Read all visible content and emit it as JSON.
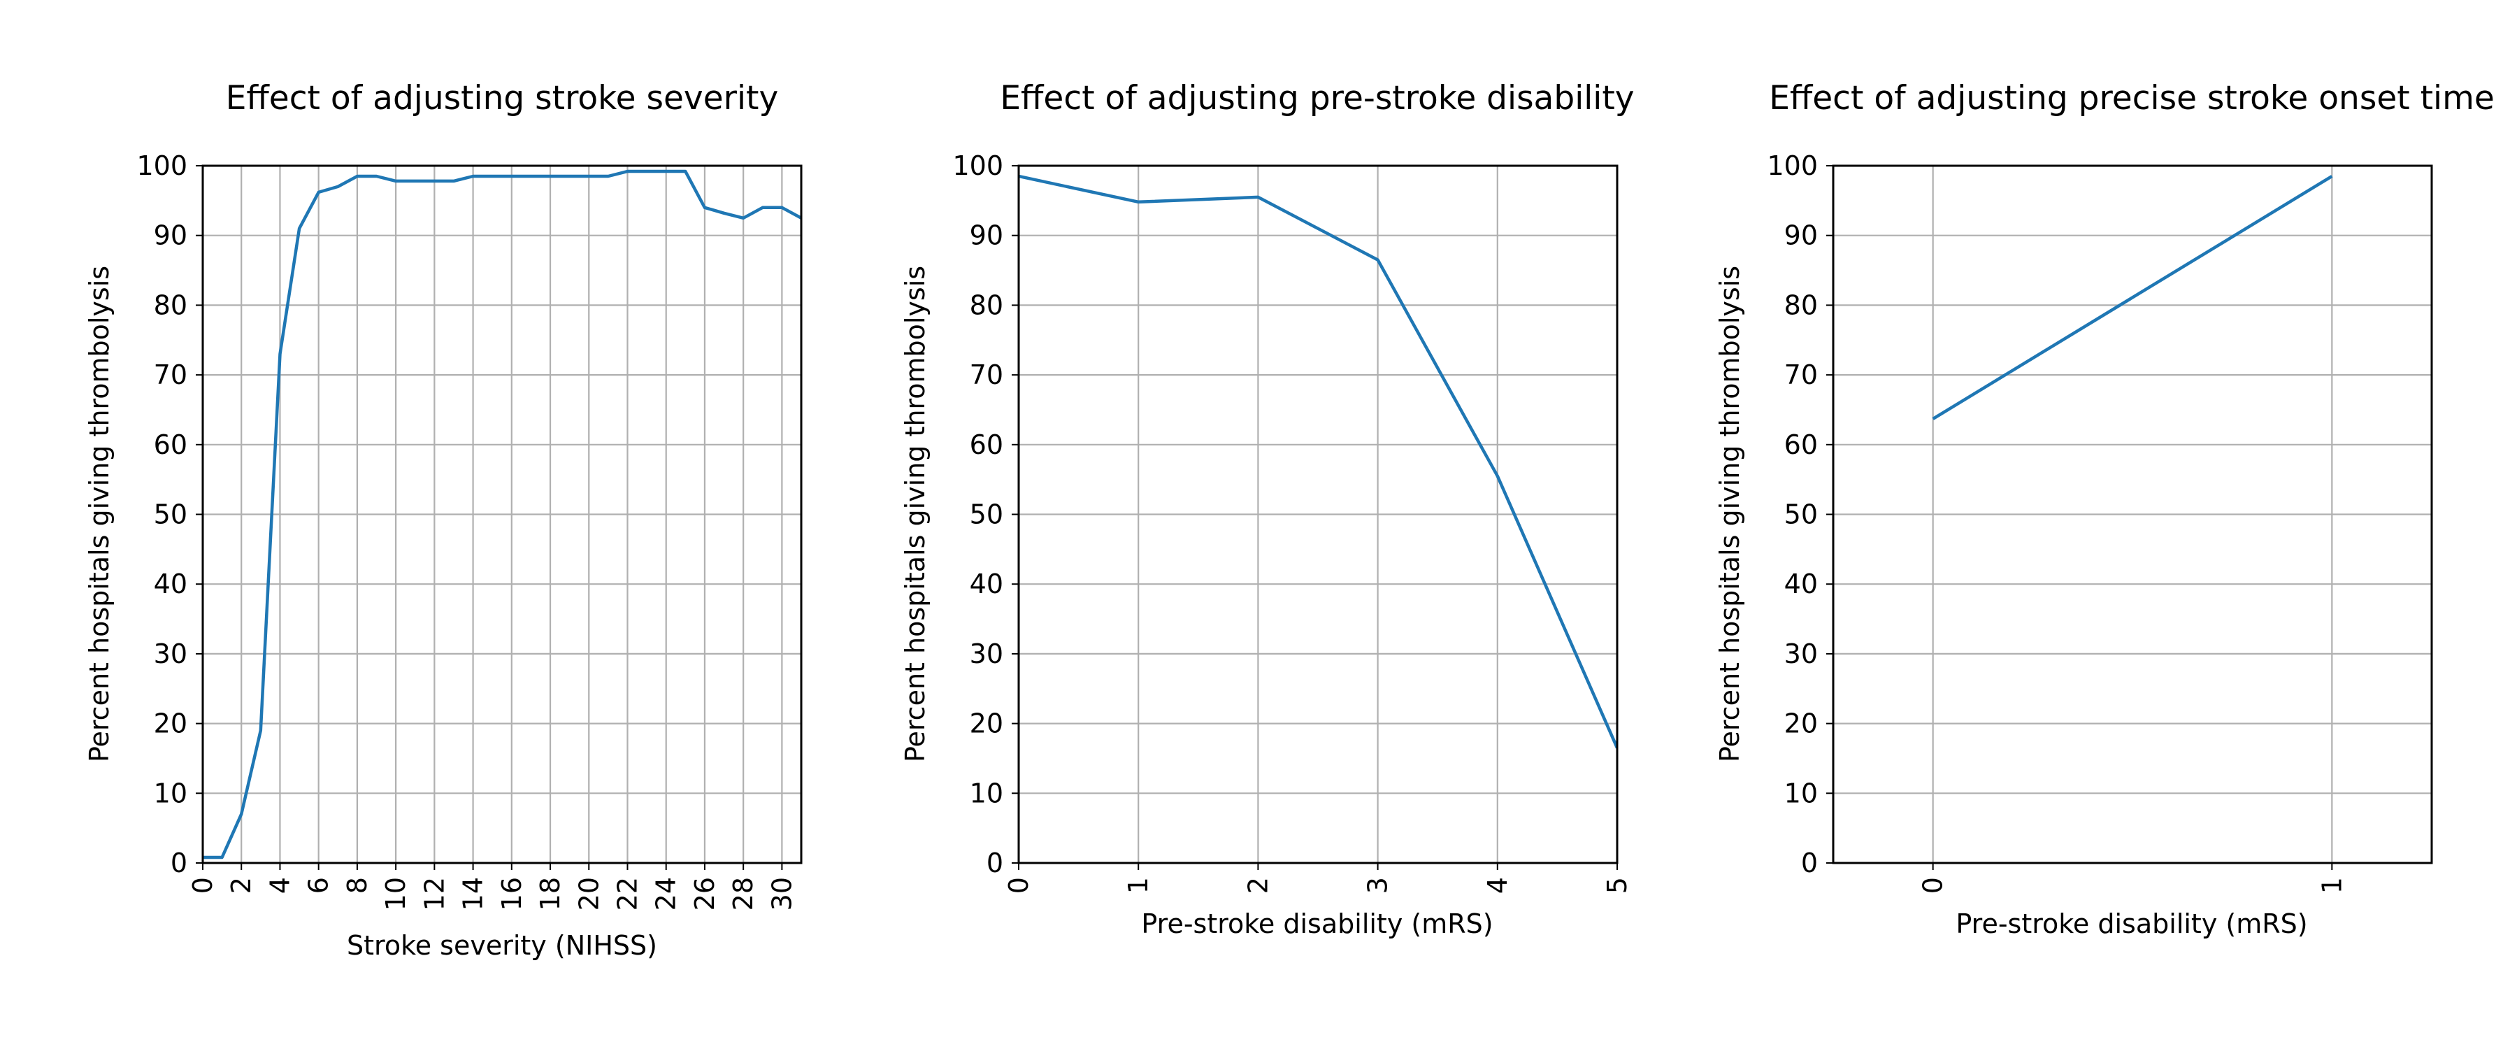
{
  "chart_data": [
    {
      "type": "line",
      "title": "Effect of adjusting stroke severity",
      "xlabel": "Stroke severity (NIHSS)",
      "ylabel": "Percent hospitals giving thrombolysis",
      "xlim": [
        0,
        31
      ],
      "ylim": [
        0,
        100
      ],
      "x_ticks": [
        0,
        2,
        4,
        6,
        8,
        10,
        12,
        14,
        16,
        18,
        20,
        22,
        24,
        26,
        28,
        30
      ],
      "y_ticks": [
        0,
        10,
        20,
        30,
        40,
        50,
        60,
        70,
        80,
        90,
        100
      ],
      "grid": true,
      "line_color": "#1f77b4",
      "x": [
        0,
        1,
        2,
        3,
        4,
        5,
        6,
        7,
        8,
        9,
        10,
        11,
        12,
        13,
        14,
        15,
        16,
        17,
        18,
        19,
        20,
        21,
        22,
        23,
        24,
        25,
        26,
        27,
        28,
        29,
        30,
        31
      ],
      "values": [
        0.8,
        0.8,
        7,
        19,
        73,
        91,
        96.2,
        97,
        98.5,
        98.5,
        97.8,
        97.8,
        97.8,
        97.8,
        98.5,
        98.5,
        98.5,
        98.5,
        98.5,
        98.5,
        98.5,
        98.5,
        99.2,
        99.2,
        99.2,
        99.2,
        94,
        93.2,
        92.5,
        94,
        94,
        92.5
      ]
    },
    {
      "type": "line",
      "title": "Effect of adjusting pre-stroke disability",
      "xlabel": "Pre-stroke disability (mRS)",
      "ylabel": "Percent hospitals giving thrombolysis",
      "xlim": [
        0,
        5
      ],
      "ylim": [
        0,
        100
      ],
      "x_ticks": [
        0,
        1,
        2,
        3,
        4,
        5
      ],
      "y_ticks": [
        0,
        10,
        20,
        30,
        40,
        50,
        60,
        70,
        80,
        90,
        100
      ],
      "grid": true,
      "line_color": "#1f77b4",
      "x": [
        0,
        1,
        2,
        3,
        4,
        5
      ],
      "values": [
        98.5,
        94.8,
        95.5,
        86.5,
        55.5,
        16.5
      ]
    },
    {
      "type": "line",
      "title": "Effect of adjusting precise stroke onset time",
      "xlabel": "Pre-stroke disability (mRS)",
      "ylabel": "Percent hospitals giving thrombolysis",
      "xlim": [
        -0.25,
        1.25
      ],
      "ylim": [
        0,
        100
      ],
      "x_ticks": [
        0,
        1
      ],
      "y_ticks": [
        0,
        10,
        20,
        30,
        40,
        50,
        60,
        70,
        80,
        90,
        100
      ],
      "grid": true,
      "line_color": "#1f77b4",
      "x": [
        0,
        1
      ],
      "values": [
        63.7,
        98.5
      ]
    }
  ]
}
